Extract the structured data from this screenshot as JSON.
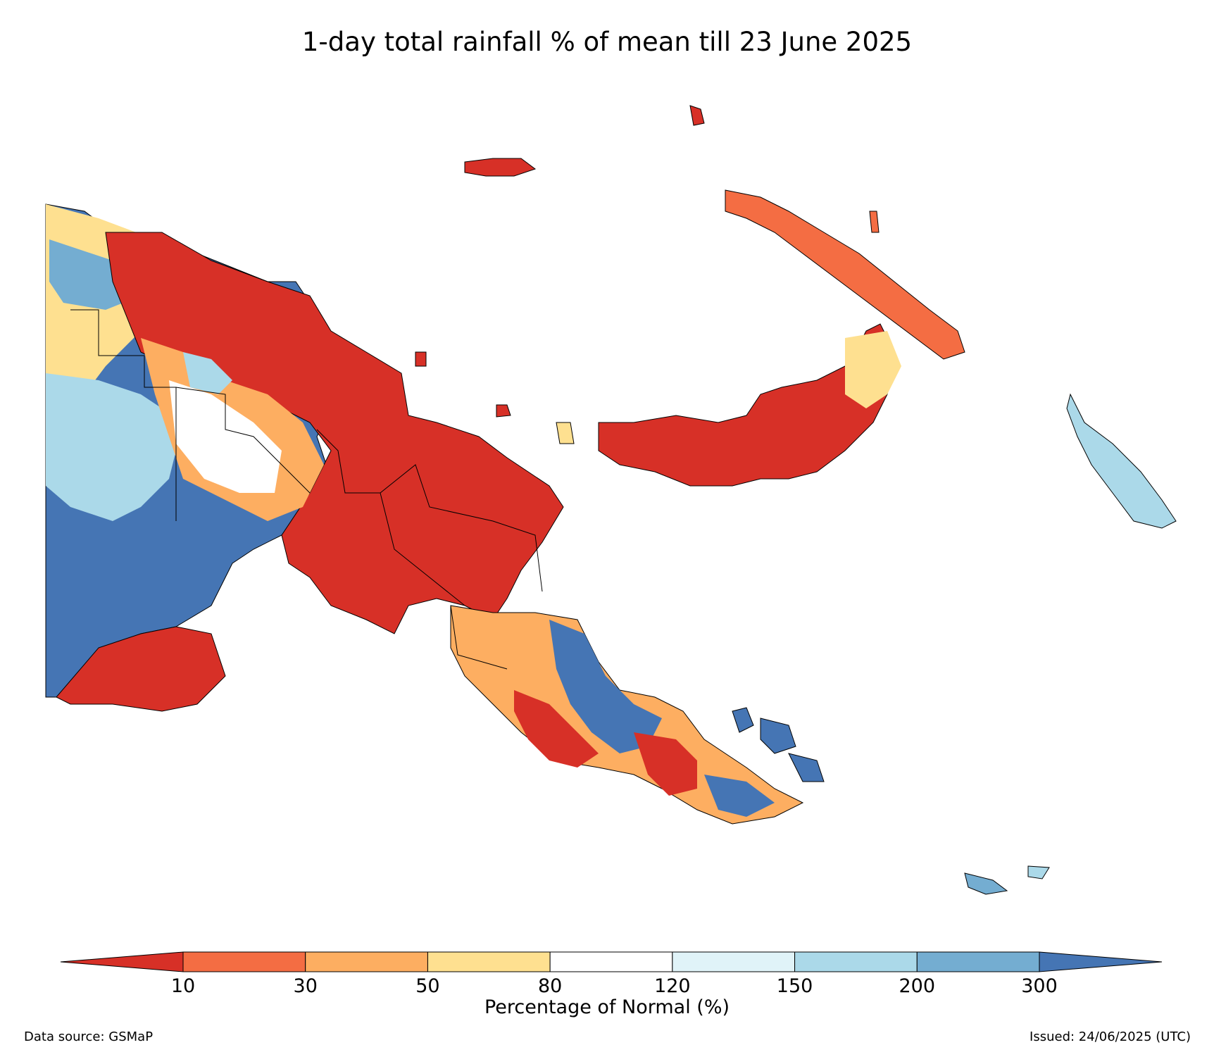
{
  "title": "1-day total rainfall % of mean till 23 June 2025",
  "colorbar": {
    "label": "Percentage of Normal (%)",
    "ticks": [
      "10",
      "30",
      "50",
      "80",
      "120",
      "150",
      "200",
      "300"
    ],
    "bins": [
      {
        "range": "<10",
        "color": "#d73027"
      },
      {
        "range": "10-30",
        "color": "#f46d43"
      },
      {
        "range": "30-50",
        "color": "#fdae61"
      },
      {
        "range": "50-80",
        "color": "#fee090"
      },
      {
        "range": "80-120",
        "color": "#ffffff"
      },
      {
        "range": "120-150",
        "color": "#e0f3f8"
      },
      {
        "range": "150-200",
        "color": "#abd9e9"
      },
      {
        "range": "200-300",
        "color": "#74add1"
      },
      {
        "range": ">300",
        "color": "#4575b4"
      }
    ]
  },
  "footer": {
    "source": "Data source: GSMaP",
    "issued": "Issued: 24/06/2025 (UTC)"
  },
  "map_regions": [
    {
      "name": "western-papua-new-guinea",
      "category": ">300"
    },
    {
      "name": "northern-papua-new-guinea",
      "category": "<10"
    },
    {
      "name": "new-britain",
      "category": "<10"
    },
    {
      "name": "new-ireland",
      "category": "10-30"
    },
    {
      "name": "bougainville",
      "category": "150-200"
    },
    {
      "name": "southeast-papua-new-guinea",
      "category": ">300"
    },
    {
      "name": "milne-bay-islands",
      "category": ">300"
    }
  ]
}
